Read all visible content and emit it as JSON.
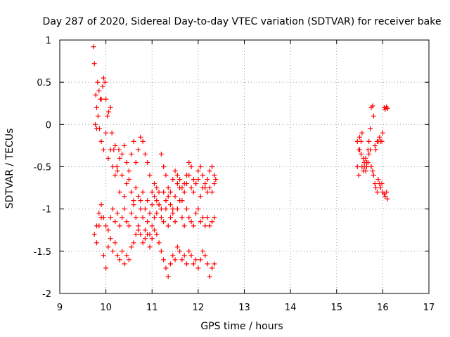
{
  "chart_data": {
    "type": "scatter",
    "title": "Day 287 of 2020, Sidereal Day-to-day VTEC variation (SDTVAR) for receiver bake",
    "xlabel": "GPS time / hours",
    "ylabel": "SDTVAR / TECUs",
    "xlim": [
      9,
      17
    ],
    "ylim": [
      -2,
      1
    ],
    "xticks": [
      "9",
      "10",
      "11",
      "12",
      "13",
      "14",
      "15",
      "16",
      "17"
    ],
    "yticks": [
      "1",
      "0.5",
      "0",
      "-0.5",
      "-1",
      "-1.5",
      "-2"
    ],
    "grid": true,
    "marker": "+",
    "color": "#ff0000",
    "series": [
      {
        "name": "SDTVAR",
        "x": [
          9.73,
          9.75,
          9.77,
          9.8,
          9.82,
          9.85,
          9.88,
          9.9,
          9.93,
          9.95,
          9.98,
          10.0,
          10.03,
          10.06,
          10.1,
          10.13,
          10.17,
          10.2,
          10.24,
          10.28,
          10.3,
          10.35,
          10.4,
          10.45,
          10.5,
          10.55,
          10.6,
          10.65,
          10.7,
          10.75,
          10.8,
          10.85,
          10.9,
          10.95,
          11.0,
          11.05,
          11.1,
          11.15,
          11.2,
          11.25,
          11.3,
          11.35,
          11.4,
          11.45,
          11.5,
          11.55,
          11.6,
          11.65,
          11.7,
          11.75,
          11.8,
          11.85,
          11.9,
          11.95,
          12.0,
          12.05,
          12.1,
          12.15,
          12.2,
          12.25,
          12.3,
          12.35,
          12.38,
          9.78,
          9.8,
          9.83,
          9.86,
          9.9,
          9.95,
          10.0,
          10.05,
          10.1,
          10.15,
          10.2,
          10.25,
          10.3,
          10.35,
          10.4,
          10.45,
          10.5,
          10.55,
          10.6,
          10.65,
          10.7,
          10.75,
          10.8,
          10.85,
          10.9,
          10.95,
          11.0,
          11.05,
          11.1,
          11.15,
          11.2,
          11.25,
          11.3,
          11.35,
          11.4,
          11.45,
          11.5,
          11.55,
          11.6,
          11.65,
          11.7,
          11.75,
          11.8,
          11.85,
          11.9,
          11.95,
          12.0,
          12.05,
          12.1,
          12.15,
          12.2,
          12.25,
          12.3,
          12.35,
          9.75,
          9.8,
          9.85,
          9.9,
          9.95,
          10.0,
          10.05,
          10.1,
          10.15,
          10.2,
          10.25,
          10.3,
          10.35,
          10.4,
          10.45,
          10.5,
          10.55,
          10.6,
          10.65,
          10.7,
          10.75,
          10.8,
          10.85,
          10.9,
          10.95,
          11.0,
          11.05,
          11.1,
          11.15,
          11.2,
          11.25,
          11.3,
          11.35,
          11.4,
          11.45,
          11.5,
          11.55,
          11.6,
          11.65,
          11.7,
          11.75,
          11.8,
          11.85,
          11.9,
          11.95,
          12.0,
          12.05,
          12.1,
          12.15,
          12.2,
          12.25,
          12.3,
          12.35,
          9.8,
          9.85,
          9.9,
          9.95,
          10.0,
          10.05,
          10.1,
          10.15,
          10.2,
          10.25,
          10.3,
          10.35,
          10.4,
          10.45,
          10.5,
          10.55,
          10.6,
          10.65,
          10.7,
          10.75,
          10.8,
          10.85,
          10.9,
          10.95,
          11.0,
          11.05,
          11.1,
          11.15,
          11.2,
          11.25,
          11.3,
          11.35,
          11.4,
          11.45,
          11.5,
          11.55,
          11.6,
          11.65,
          11.7,
          11.75,
          11.8,
          11.85,
          11.9,
          11.95,
          12.0,
          12.05,
          12.1,
          12.15,
          12.2,
          12.25,
          12.3,
          12.35,
          15.45,
          15.48,
          15.5,
          15.53,
          15.55,
          15.58,
          15.6,
          15.63,
          15.65,
          15.68,
          15.7,
          15.73,
          15.75,
          15.78,
          15.8,
          15.83,
          15.85,
          15.88,
          15.9,
          15.93,
          15.95,
          15.98,
          16.0,
          16.03,
          16.05,
          16.08,
          16.1,
          15.45,
          15.48,
          15.5,
          15.53,
          15.55,
          15.58,
          15.6,
          15.63,
          15.65,
          15.68,
          15.7,
          15.73,
          15.75,
          15.78,
          15.8,
          15.83,
          15.85,
          15.88,
          15.9,
          15.93,
          15.95,
          15.98,
          16.0,
          16.03,
          16.05,
          16.08,
          16.1
        ],
        "y": [
          0.92,
          0.72,
          0.0,
          -0.05,
          0.5,
          0.4,
          0.3,
          0.3,
          0.45,
          0.55,
          0.5,
          0.3,
          0.1,
          0.15,
          0.2,
          -0.1,
          -0.3,
          -0.25,
          -0.5,
          -0.3,
          -0.4,
          -0.35,
          -0.25,
          -0.45,
          -0.55,
          -0.35,
          -0.2,
          -0.45,
          -0.3,
          -0.15,
          -0.2,
          -0.35,
          -0.45,
          -0.6,
          -0.8,
          -0.7,
          -0.75,
          -0.8,
          -0.35,
          -0.5,
          -0.6,
          -0.75,
          -0.8,
          -0.65,
          -0.55,
          -0.6,
          -0.65,
          -0.75,
          -0.7,
          -0.6,
          -0.45,
          -0.5,
          -0.65,
          -0.7,
          -0.55,
          -0.5,
          -0.6,
          -0.75,
          -0.65,
          -0.55,
          -0.5,
          -0.6,
          -0.65,
          0.35,
          0.2,
          0.1,
          -0.05,
          -0.2,
          -0.3,
          -0.1,
          -0.4,
          -0.3,
          -0.5,
          -0.6,
          -0.55,
          -0.8,
          -0.6,
          -0.85,
          -0.7,
          -0.65,
          -0.8,
          -0.9,
          -0.75,
          -0.85,
          -0.9,
          -0.8,
          -1.0,
          -0.9,
          -1.05,
          -0.95,
          -0.85,
          -0.9,
          -0.95,
          -1.0,
          -0.8,
          -0.9,
          -0.85,
          -0.95,
          -1.0,
          -0.85,
          -0.7,
          -0.75,
          -0.9,
          -0.8,
          -0.7,
          -0.6,
          -0.75,
          -0.8,
          -0.7,
          -0.65,
          -0.85,
          -0.75,
          -0.7,
          -0.8,
          -0.75,
          -0.8,
          -0.7,
          -1.3,
          -1.2,
          -1.05,
          -0.95,
          -1.1,
          -1.2,
          -1.25,
          -1.1,
          -1.0,
          -1.15,
          -1.05,
          -1.2,
          -1.1,
          -1.0,
          -1.15,
          -1.2,
          -1.05,
          -0.95,
          -1.1,
          -1.2,
          -1.0,
          -1.1,
          -1.25,
          -1.15,
          -1.3,
          -1.2,
          -1.1,
          -1.05,
          -0.95,
          -1.1,
          -1.15,
          -1.0,
          -1.2,
          -1.1,
          -1.05,
          -1.15,
          -1.0,
          -0.9,
          -1.1,
          -1.2,
          -1.0,
          -1.1,
          -1.15,
          -1.2,
          -1.05,
          -1.0,
          -1.15,
          -1.1,
          -1.2,
          -1.1,
          -1.2,
          -1.15,
          -1.1,
          -1.4,
          -1.2,
          -1.1,
          -1.55,
          -1.7,
          -1.45,
          -1.35,
          -1.5,
          -1.4,
          -1.55,
          -1.6,
          -1.5,
          -1.65,
          -1.55,
          -1.6,
          -1.45,
          -1.4,
          -1.3,
          -1.25,
          -1.3,
          -1.4,
          -1.35,
          -1.3,
          -1.45,
          -1.35,
          -1.25,
          -1.3,
          -1.4,
          -1.5,
          -1.6,
          -1.7,
          -1.8,
          -1.65,
          -1.55,
          -1.6,
          -1.45,
          -1.5,
          -1.6,
          -1.55,
          -1.65,
          -1.5,
          -1.55,
          -1.65,
          -1.6,
          -1.7,
          -1.6,
          -1.5,
          -1.55,
          -1.65,
          -1.8,
          -1.7,
          -1.65,
          -0.5,
          -0.6,
          -0.3,
          -0.2,
          -0.1,
          -0.4,
          -0.5,
          -0.55,
          -0.45,
          -0.3,
          -0.2,
          -0.05,
          0.2,
          0.22,
          0.1,
          -0.25,
          -0.3,
          -0.2,
          -0.2,
          -0.15,
          -0.2,
          -0.2,
          -0.1,
          0.2,
          0.18,
          0.21,
          0.19,
          -0.2,
          -0.3,
          -0.15,
          -0.35,
          -0.5,
          -0.55,
          -0.45,
          -0.4,
          -0.5,
          -0.45,
          -0.35,
          -0.3,
          -0.5,
          -0.55,
          -0.6,
          -0.7,
          -0.75,
          -0.8,
          -0.65,
          -0.7,
          -0.75,
          -0.7,
          -0.8,
          -0.82,
          -0.85,
          -0.8,
          -0.88
        ]
      }
    ]
  }
}
